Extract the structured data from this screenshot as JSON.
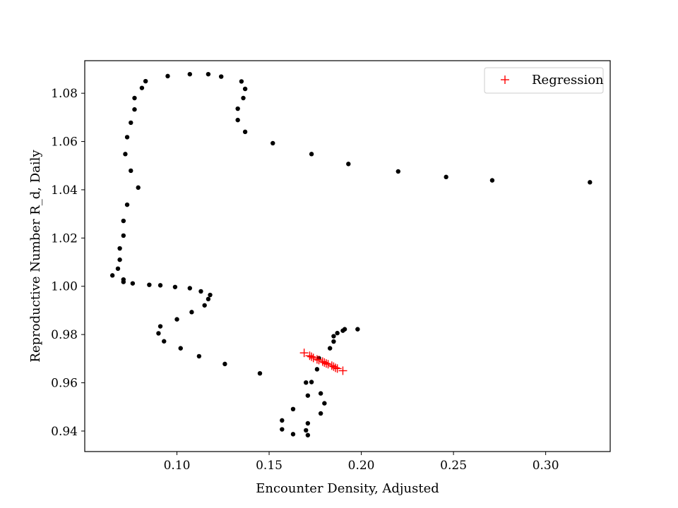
{
  "chart_data": {
    "type": "scatter",
    "xlabel": "Encounter Density, Adjusted",
    "ylabel": "Reproductive Number R_d, Daily",
    "xlim": [
      0.05,
      0.335
    ],
    "ylim": [
      0.9315,
      1.0935
    ],
    "xticks": [
      0.1,
      0.15,
      0.2,
      0.25,
      0.3
    ],
    "xtick_labels": [
      "0.10",
      "0.15",
      "0.20",
      "0.25",
      "0.30"
    ],
    "yticks": [
      0.94,
      0.96,
      0.98,
      1.0,
      1.02,
      1.04,
      1.06,
      1.08
    ],
    "ytick_labels": [
      "0.94",
      "0.96",
      "0.98",
      "1.00",
      "1.02",
      "1.04",
      "1.06",
      "1.08"
    ],
    "grid": false,
    "legend": {
      "position": "top-right",
      "entries": [
        "Regression"
      ]
    },
    "series": [
      {
        "marker": "dot",
        "color": "#000000",
        "points": [
          [
            0.324,
            1.0431
          ],
          [
            0.271,
            1.0439
          ],
          [
            0.246,
            1.0453
          ],
          [
            0.22,
            1.0476
          ],
          [
            0.193,
            1.0507
          ],
          [
            0.173,
            1.0548
          ],
          [
            0.152,
            1.0593
          ],
          [
            0.137,
            1.064
          ],
          [
            0.133,
            1.0689
          ],
          [
            0.133,
            1.0736
          ],
          [
            0.136,
            1.078
          ],
          [
            0.137,
            1.0818
          ],
          [
            0.135,
            1.0849
          ],
          [
            0.124,
            1.0869
          ],
          [
            0.117,
            1.0879
          ],
          [
            0.107,
            1.0879
          ],
          [
            0.095,
            1.0871
          ],
          [
            0.083,
            1.085
          ],
          [
            0.081,
            1.0822
          ],
          [
            0.077,
            1.078
          ],
          [
            0.077,
            1.0733
          ],
          [
            0.075,
            1.0678
          ],
          [
            0.073,
            1.0618
          ],
          [
            0.072,
            1.0548
          ],
          [
            0.075,
            1.0479
          ],
          [
            0.079,
            1.0409
          ],
          [
            0.073,
            1.0338
          ],
          [
            0.071,
            1.0271
          ],
          [
            0.071,
            1.021
          ],
          [
            0.069,
            1.0157
          ],
          [
            0.069,
            1.011
          ],
          [
            0.068,
            1.0073
          ],
          [
            0.065,
            1.0045
          ],
          [
            0.071,
            1.0028
          ],
          [
            0.071,
            1.0018
          ],
          [
            0.076,
            1.0012
          ],
          [
            0.085,
            1.0006
          ],
          [
            0.091,
            1.0004
          ],
          [
            0.099,
            0.9997
          ],
          [
            0.107,
            0.9992
          ],
          [
            0.113,
            0.9979
          ],
          [
            0.118,
            0.9964
          ],
          [
            0.117,
            0.9947
          ],
          [
            0.115,
            0.9921
          ],
          [
            0.108,
            0.9893
          ],
          [
            0.1,
            0.9863
          ],
          [
            0.091,
            0.9834
          ],
          [
            0.09,
            0.9805
          ],
          [
            0.093,
            0.9772
          ],
          [
            0.102,
            0.9743
          ],
          [
            0.112,
            0.971
          ],
          [
            0.126,
            0.9678
          ],
          [
            0.145,
            0.9639
          ],
          [
            0.176,
            0.9656
          ],
          [
            0.177,
            0.9702
          ],
          [
            0.183,
            0.9743
          ],
          [
            0.185,
            0.9771
          ],
          [
            0.185,
            0.9793
          ],
          [
            0.187,
            0.9806
          ],
          [
            0.19,
            0.9816
          ],
          [
            0.191,
            0.9822
          ],
          [
            0.198,
            0.9822
          ],
          [
            0.17,
            0.9601
          ],
          [
            0.173,
            0.9603
          ],
          [
            0.171,
            0.9547
          ],
          [
            0.178,
            0.9556
          ],
          [
            0.18,
            0.9515
          ],
          [
            0.163,
            0.9491
          ],
          [
            0.178,
            0.9473
          ],
          [
            0.157,
            0.9444
          ],
          [
            0.171,
            0.9432
          ],
          [
            0.157,
            0.9407
          ],
          [
            0.17,
            0.9403
          ],
          [
            0.163,
            0.9387
          ],
          [
            0.171,
            0.9383
          ]
        ]
      },
      {
        "name": "Regression",
        "marker": "plus",
        "color": "#ff0000",
        "points": [
          [
            0.169,
            0.9724
          ],
          [
            0.172,
            0.9712
          ],
          [
            0.173,
            0.9708
          ],
          [
            0.174,
            0.9703
          ],
          [
            0.176,
            0.9697
          ],
          [
            0.177,
            0.9694
          ],
          [
            0.179,
            0.9688
          ],
          [
            0.18,
            0.9684
          ],
          [
            0.181,
            0.968
          ],
          [
            0.182,
            0.9677
          ],
          [
            0.184,
            0.9671
          ],
          [
            0.185,
            0.9667
          ],
          [
            0.186,
            0.9662
          ],
          [
            0.187,
            0.9659
          ],
          [
            0.19,
            0.965
          ]
        ]
      }
    ]
  }
}
